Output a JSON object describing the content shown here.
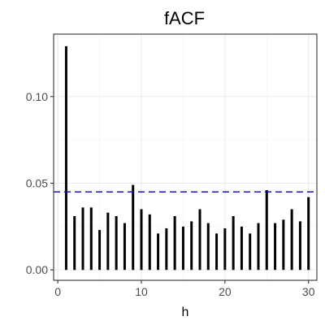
{
  "chart_data": {
    "type": "bar",
    "title": "fACF",
    "xlabel": "h",
    "ylabel": "",
    "xlim": [
      -0.5,
      31.0
    ],
    "ylim": [
      -0.006,
      0.136
    ],
    "x_ticks": [
      0,
      10,
      20,
      30
    ],
    "x_tick_labels": [
      "0",
      "10",
      "20",
      "30"
    ],
    "y_ticks": [
      0.0,
      0.05,
      0.1
    ],
    "y_tick_labels": [
      "0.00",
      "0.05",
      "0.10"
    ],
    "grid": true,
    "theme": "bw",
    "x": [
      1,
      2,
      3,
      4,
      5,
      6,
      7,
      8,
      9,
      10,
      11,
      12,
      13,
      14,
      15,
      16,
      17,
      18,
      19,
      20,
      21,
      22,
      23,
      24,
      25,
      26,
      27,
      28,
      29,
      30
    ],
    "values": [
      0.129,
      0.031,
      0.036,
      0.036,
      0.023,
      0.033,
      0.031,
      0.027,
      0.049,
      0.035,
      0.032,
      0.021,
      0.024,
      0.031,
      0.025,
      0.028,
      0.035,
      0.027,
      0.021,
      0.024,
      0.031,
      0.025,
      0.021,
      0.027,
      0.046,
      0.027,
      0.029,
      0.035,
      0.028,
      0.042
    ],
    "bar_color": "#000000",
    "threshold": {
      "value": 0.045,
      "color": "#0000cc",
      "style": "dashed"
    }
  }
}
